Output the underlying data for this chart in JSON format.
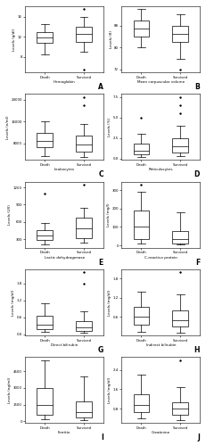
{
  "panels": [
    {
      "label": "A",
      "xlabel": "Hemoglobin",
      "ylabel": "Levels (g/dl)",
      "death": {
        "q1": 10.8,
        "median": 11.8,
        "q3": 13.0,
        "whislo": 8.5,
        "whishi": 14.5,
        "fliers": []
      },
      "survived": {
        "q1": 11.0,
        "median": 12.5,
        "q3": 14.0,
        "whislo": 9.0,
        "whishi": 16.0,
        "fliers": [
          5.5,
          17.5
        ]
      }
    },
    {
      "label": "B",
      "xlabel": "Mean corpuscular volume",
      "ylabel": "Levels (fl)",
      "death": {
        "q1": 84,
        "median": 87,
        "q3": 90,
        "whislo": 80,
        "whishi": 94,
        "fliers": []
      },
      "survived": {
        "q1": 82,
        "median": 85,
        "q3": 88,
        "whislo": 76,
        "whishi": 92,
        "fliers": [
          72
        ]
      }
    },
    {
      "label": "C",
      "xlabel": "Leukocytes",
      "ylabel": "Levels (n/ml)",
      "death": {
        "q1": 6500,
        "median": 9000,
        "q3": 12000,
        "whislo": 3500,
        "whishi": 16000,
        "fliers": []
      },
      "survived": {
        "q1": 5000,
        "median": 7500,
        "q3": 11000,
        "whislo": 3000,
        "whishi": 15000,
        "fliers": [
          22000,
          25000
        ]
      }
    },
    {
      "label": "D",
      "xlabel": "Reticulocytes",
      "ylabel": "Levels (%)",
      "death": {
        "q1": 0.5,
        "median": 1.0,
        "q3": 1.8,
        "whislo": 0.2,
        "whishi": 3.0,
        "fliers": [
          5.0
        ]
      },
      "survived": {
        "q1": 0.8,
        "median": 1.5,
        "q3": 2.5,
        "whislo": 0.3,
        "whishi": 4.0,
        "fliers": [
          5.5,
          6.5,
          7.5
        ]
      }
    },
    {
      "label": "E",
      "xlabel": "Lactic dehydrogenase",
      "ylabel": "Levels (U/l)",
      "death": {
        "q1": 280,
        "median": 360,
        "q3": 450,
        "whislo": 200,
        "whishi": 580,
        "fliers": [
          1100
        ]
      },
      "survived": {
        "q1": 320,
        "median": 480,
        "q3": 680,
        "whislo": 240,
        "whishi": 850,
        "fliers": [
          1250
        ]
      }
    },
    {
      "label": "F",
      "xlabel": "C-reactive protein",
      "ylabel": "Levels (mg/l)",
      "death": {
        "q1": 35,
        "median": 100,
        "q3": 190,
        "whislo": 8,
        "whishi": 290,
        "fliers": [
          330
        ]
      },
      "survived": {
        "q1": 12,
        "median": 35,
        "q3": 80,
        "whislo": 3,
        "whishi": 180,
        "fliers": []
      }
    },
    {
      "label": "G",
      "xlabel": "Direct bilirubin",
      "ylabel": "Levels (mg/dl)",
      "death": {
        "q1": 0.18,
        "median": 0.35,
        "q3": 0.65,
        "whislo": 0.08,
        "whishi": 1.1,
        "fliers": []
      },
      "survived": {
        "q1": 0.12,
        "median": 0.25,
        "q3": 0.45,
        "whislo": 0.06,
        "whishi": 0.8,
        "fliers": [
          1.8,
          2.2
        ]
      }
    },
    {
      "label": "H",
      "xlabel": "Indirect bilirubin",
      "ylabel": "Levels (mg/dl)",
      "death": {
        "q1": 0.35,
        "median": 0.6,
        "q3": 0.9,
        "whislo": 0.12,
        "whishi": 1.4,
        "fliers": []
      },
      "survived": {
        "q1": 0.28,
        "median": 0.5,
        "q3": 0.8,
        "whislo": 0.1,
        "whishi": 1.3,
        "fliers": [
          2.0
        ]
      }
    },
    {
      "label": "I",
      "xlabel": "Ferritin",
      "ylabel": "Levels (ng/ml)",
      "death": {
        "q1": 600,
        "median": 1500,
        "q3": 3000,
        "whislo": 150,
        "whishi": 5500,
        "fliers": []
      },
      "survived": {
        "q1": 350,
        "median": 800,
        "q3": 1800,
        "whislo": 100,
        "whishi": 4000,
        "fliers": []
      }
    },
    {
      "label": "J",
      "xlabel": "Creatinine",
      "ylabel": "Levels (mg/dl)",
      "death": {
        "q1": 0.65,
        "median": 0.95,
        "q3": 1.4,
        "whislo": 0.38,
        "whishi": 2.2,
        "fliers": []
      },
      "survived": {
        "q1": 0.55,
        "median": 0.8,
        "q3": 1.05,
        "whislo": 0.32,
        "whishi": 1.7,
        "fliers": [
          2.8
        ]
      }
    }
  ],
  "group_labels": [
    "Death",
    "Survived"
  ],
  "box_color": "white",
  "median_color": "black",
  "whisker_color": "black",
  "flier_color": "black",
  "flier_marker": "+",
  "linewidth": 0.5,
  "label_fontsize": 3.0,
  "tick_fontsize": 2.8,
  "panel_label_fontsize": 5.5
}
